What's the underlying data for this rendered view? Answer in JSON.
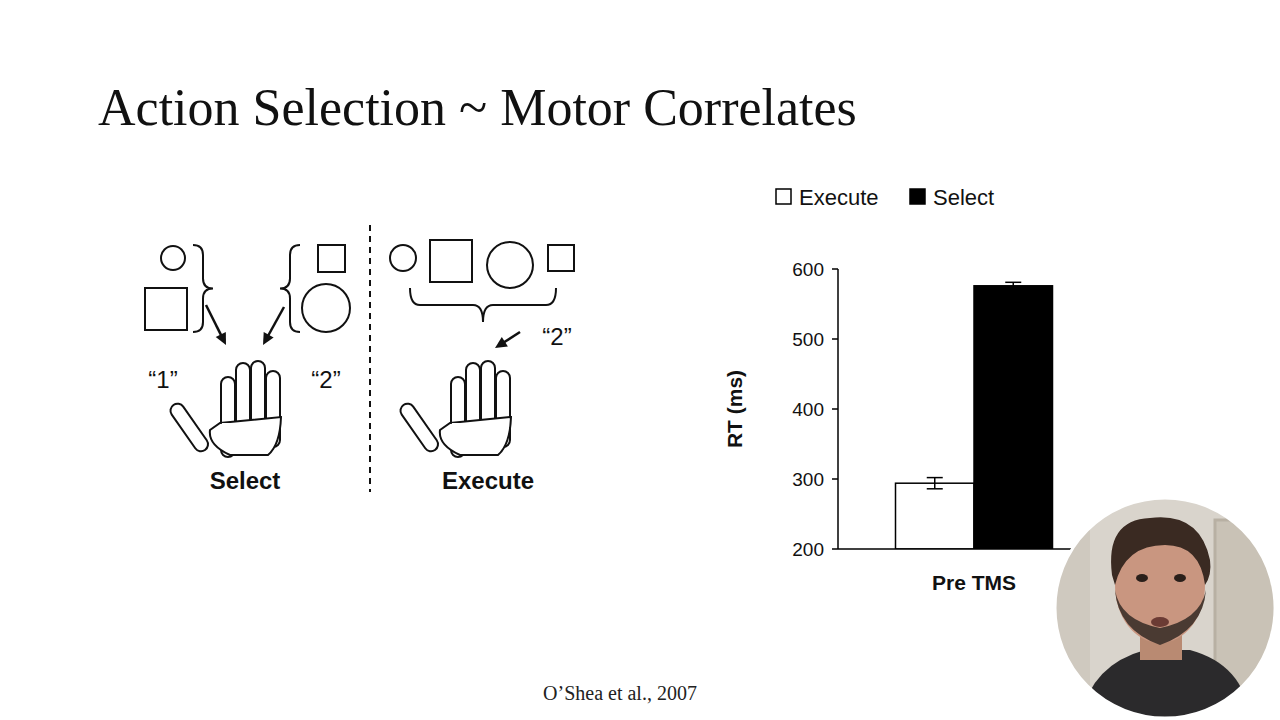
{
  "slide": {
    "title": "Action Selection ~ Motor Correlates",
    "citation": "O’Shea et al., 2007"
  },
  "diagram": {
    "select": {
      "label": "Select",
      "cues": [
        "“1”",
        "“2”"
      ]
    },
    "execute": {
      "label": "Execute",
      "cue": "“2”"
    }
  },
  "chart_data": {
    "type": "bar",
    "categories": [
      "Pre TMS"
    ],
    "series": [
      {
        "name": "Execute",
        "color": "#ffffff",
        "values": [
          294
        ],
        "errors": [
          8
        ]
      },
      {
        "name": "Select",
        "color": "#000000",
        "values": [
          576
        ],
        "errors": [
          5
        ]
      }
    ],
    "y_label": "RT (ms)",
    "ylim": [
      200,
      600
    ],
    "yticks": [
      200,
      300,
      400,
      500,
      600
    ],
    "legend": "top",
    "grid": false
  }
}
